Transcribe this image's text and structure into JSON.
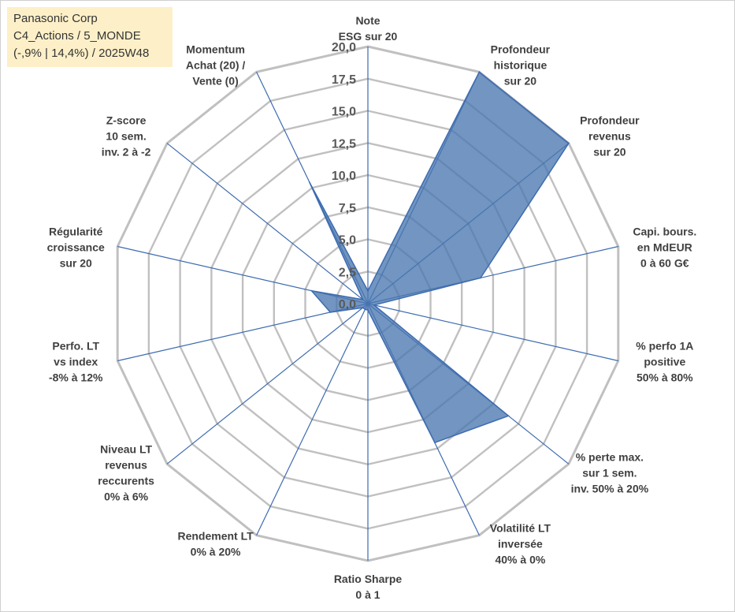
{
  "info": {
    "line1": "Panasonic Corp",
    "line2": "C4_Actions / 5_MONDE",
    "line3": "(-,9% | 14,4%) / 2025W48"
  },
  "colors": {
    "fill": "#4a77b0",
    "stroke": "#3d6bb0",
    "grid": "#c0c0c0",
    "spoke": "#3d6bb0",
    "info_bg": "#fdf0c8"
  },
  "chart_data": {
    "type": "radar",
    "rmin": 0,
    "rmax": 20,
    "tick_labels": [
      "0,0",
      "2,5",
      "5,0",
      "7,5",
      "10,0",
      "12,5",
      "15,0",
      "17,5",
      "20,0"
    ],
    "axes": [
      {
        "label": [
          "Note",
          "ESG sur 20"
        ],
        "value": 1.0
      },
      {
        "label": [
          "Profondeur",
          "historique",
          "sur 20"
        ],
        "value": 20.0
      },
      {
        "label": [
          "Profondeur",
          "revenus",
          "sur 20"
        ],
        "value": 20.0
      },
      {
        "label": [
          "Capi. bours.",
          "en MdEUR",
          "0 à 60 G€"
        ],
        "value": 9.0
      },
      {
        "label": [
          "% perfo 1A",
          "positive",
          "50% à 80%"
        ],
        "value": 0.5
      },
      {
        "label": [
          "% perte max.",
          "sur 1 sem.",
          "inv. 50% à 20%"
        ],
        "value": 14.0
      },
      {
        "label": [
          "Volatilité LT",
          "inversée",
          "40% à 0%"
        ],
        "value": 12.0
      },
      {
        "label": [
          "Ratio Sharpe",
          "0 à 1"
        ],
        "value": 0.5
      },
      {
        "label": [
          "Rendement LT",
          "0% à 20%"
        ],
        "value": 0.5
      },
      {
        "label": [
          "Niveau LT",
          "revenus",
          "reccurents",
          "0% à 6%"
        ],
        "value": 0.5
      },
      {
        "label": [
          "Perfo. LT",
          "vs index",
          "-8% à 12%"
        ],
        "value": 3.0
      },
      {
        "label": [
          "Régularité",
          "croissance",
          "sur 20"
        ],
        "value": 4.5
      },
      {
        "label": [
          "Z-score",
          "10 sem.",
          "inv. 2 à -2"
        ],
        "value": 0.5
      },
      {
        "label": [
          "Momentum",
          "Achat (20) /",
          "Vente (0)"
        ],
        "value": 10.5
      }
    ]
  }
}
